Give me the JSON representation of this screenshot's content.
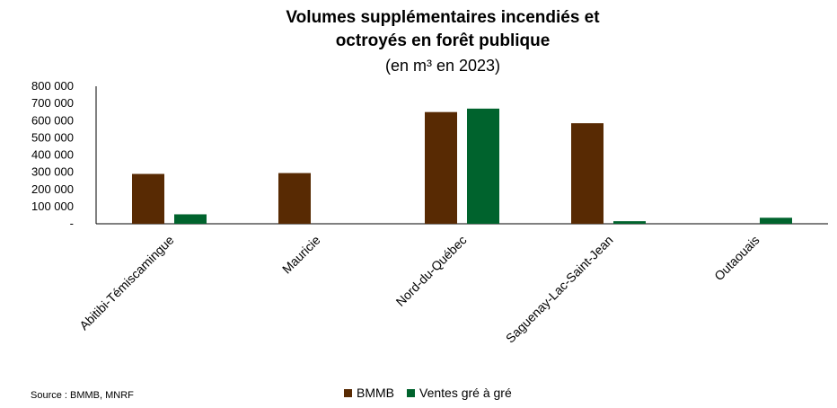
{
  "chart_data": {
    "type": "bar",
    "title_line1": "Volumes supplémentaires incendiés et",
    "title_line2": "octroyés en forêt publique",
    "subtitle": "(en m³ en 2023)",
    "categories": [
      "Abitibi-Témiscamingue",
      "Mauricie",
      "Nord-du-Québec",
      "Saguenay-Lac-Saint-Jean",
      "Outaouais"
    ],
    "series": [
      {
        "name": "BMMB",
        "color": "#582a03",
        "values": [
          290000,
          295000,
          650000,
          585000,
          0
        ]
      },
      {
        "name": "Ventes gré à gré",
        "color": "#00632d",
        "values": [
          55000,
          0,
          670000,
          15000,
          35000
        ]
      }
    ],
    "ylim": [
      0,
      800000
    ],
    "yticks": [
      0,
      100000,
      200000,
      300000,
      400000,
      500000,
      600000,
      700000,
      800000
    ],
    "ytick_labels": [
      "-",
      "100 000",
      "200 000",
      "300 000",
      "400 000",
      "500 000",
      "600 000",
      "700 000",
      "800 000"
    ],
    "grid": false,
    "legend_position": "bottom"
  },
  "source": "Source : BMMB, MNRF"
}
